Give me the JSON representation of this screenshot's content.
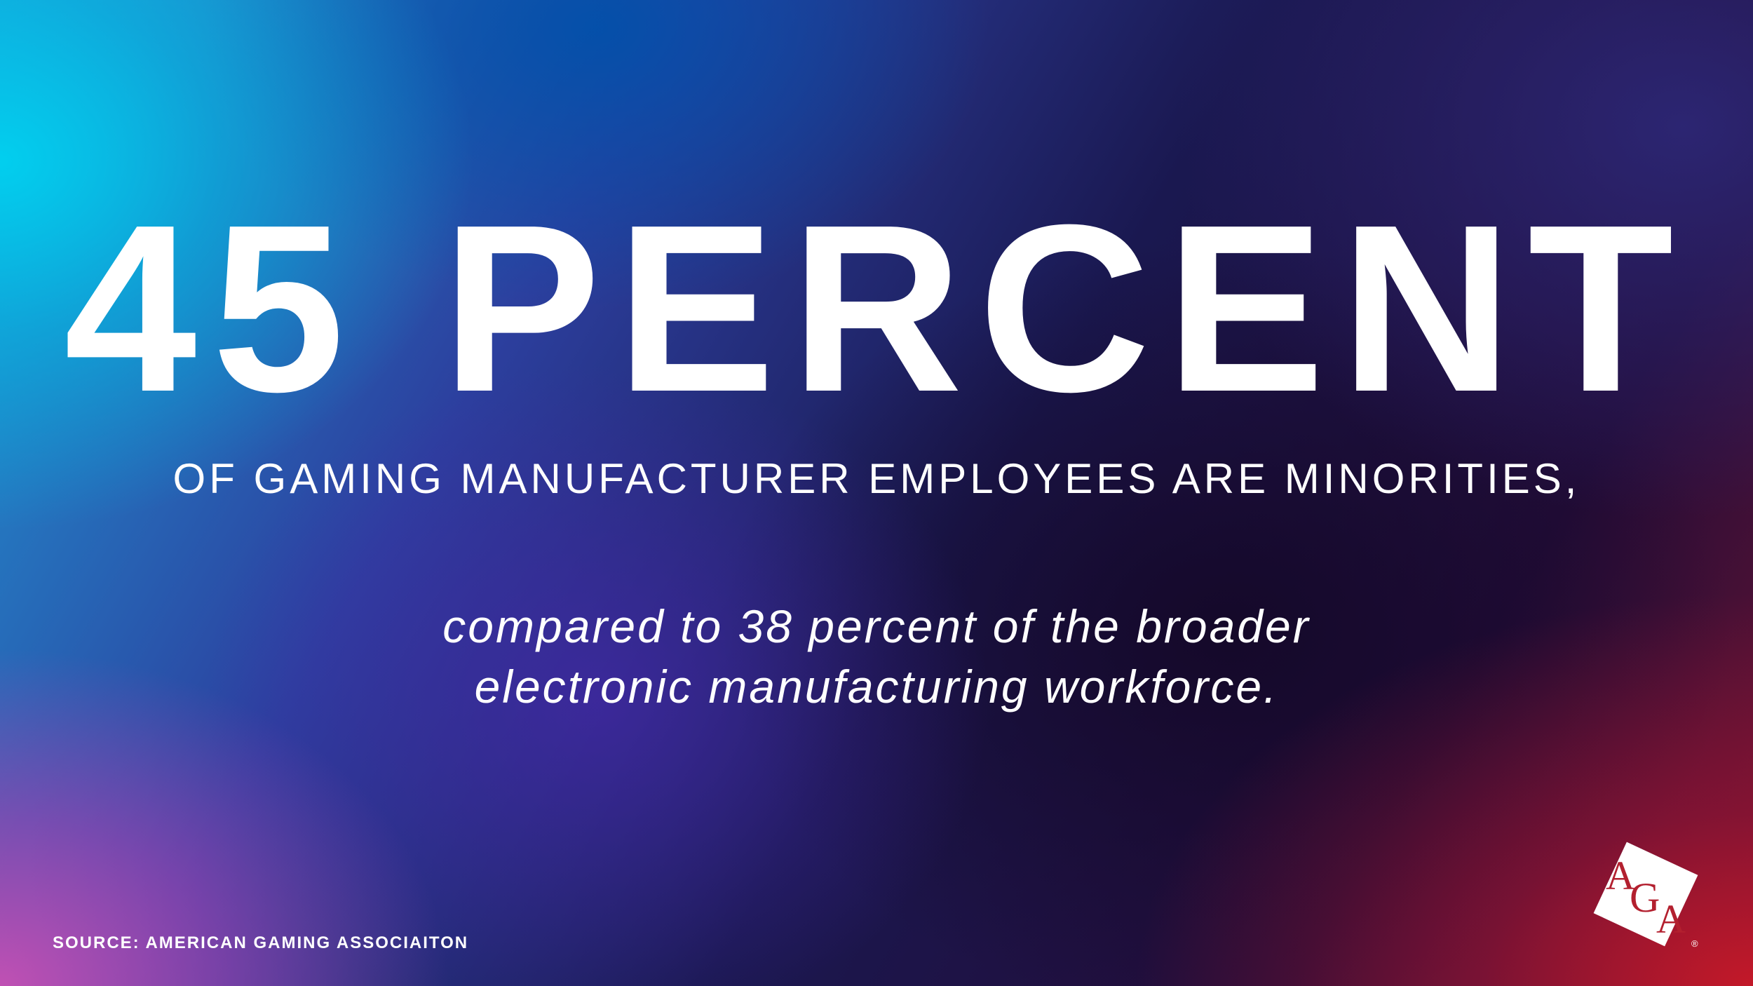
{
  "headline": "45 PERCENT",
  "subhead": "OF GAMING MANUFACTURER EMPLOYEES ARE MINORITIES,",
  "comparison": {
    "line1": "compared to 38 percent of the broader",
    "line2": "electronic manufacturing workforce."
  },
  "source": "SOURCE: AMERICAN GAMING ASSOCIAITON",
  "logo": {
    "icon": "aga-logo-icon",
    "text": "AGA",
    "registered": "®"
  },
  "colors": {
    "text": "#ffffff",
    "logo_red": "#b3202f",
    "top_left": "#00c8e6",
    "bottom_left": "#c24fae",
    "bottom_right": "#c8182a",
    "center": "#1a1550"
  }
}
